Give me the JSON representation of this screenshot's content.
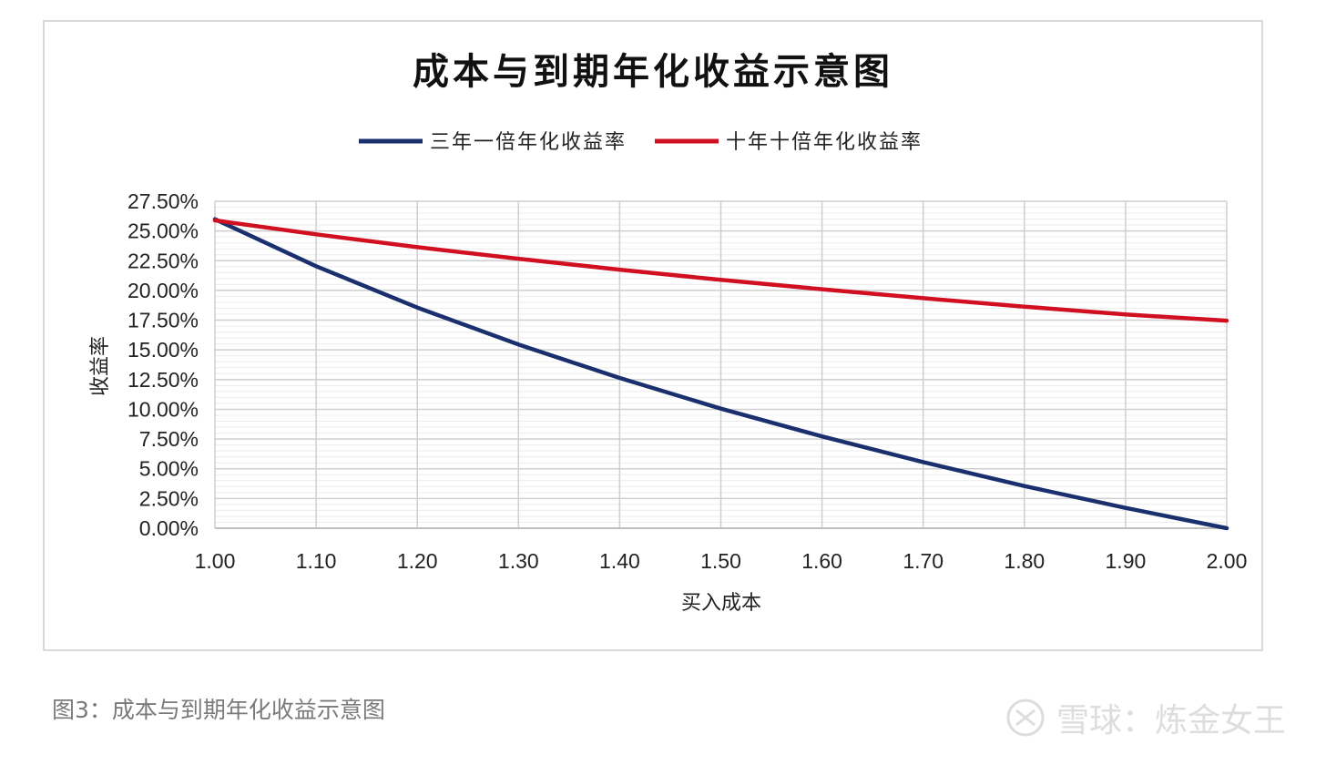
{
  "chart_data": {
    "type": "line",
    "title": "成本与到期年化收益示意图",
    "xlabel": "买入成本",
    "ylabel": "收益率",
    "x": [
      1.0,
      1.1,
      1.2,
      1.3,
      1.4,
      1.5,
      1.6,
      1.7,
      1.8,
      1.9,
      2.0
    ],
    "x_tick_labels": [
      "1.00",
      "1.10",
      "1.20",
      "1.30",
      "1.40",
      "1.50",
      "1.60",
      "1.70",
      "1.80",
      "1.90",
      "2.00"
    ],
    "ylim": [
      0,
      27.5
    ],
    "y_tick_labels": [
      "27.50%",
      "25.00%",
      "22.50%",
      "20.00%",
      "17.50%",
      "15.00%",
      "12.50%",
      "10.00%",
      "7.50%",
      "5.00%",
      "2.50%",
      "0.00%"
    ],
    "grid": true,
    "legend_position": "top",
    "series": [
      {
        "name": "三年一倍年化收益率",
        "color": "#1a2f6e",
        "values": [
          25.99,
          22.04,
          18.56,
          15.45,
          12.64,
          10.06,
          7.72,
          5.56,
          3.55,
          1.71,
          0.0
        ]
      },
      {
        "name": "十年十倍年化收益率",
        "color": "#d01020",
        "values": [
          25.89,
          24.72,
          23.64,
          22.67,
          21.75,
          20.89,
          20.1,
          19.35,
          18.64,
          17.98,
          17.46
        ]
      }
    ]
  },
  "caption": "图3：成本与到期年化收益示意图",
  "watermark": "雪球：炼金女王"
}
